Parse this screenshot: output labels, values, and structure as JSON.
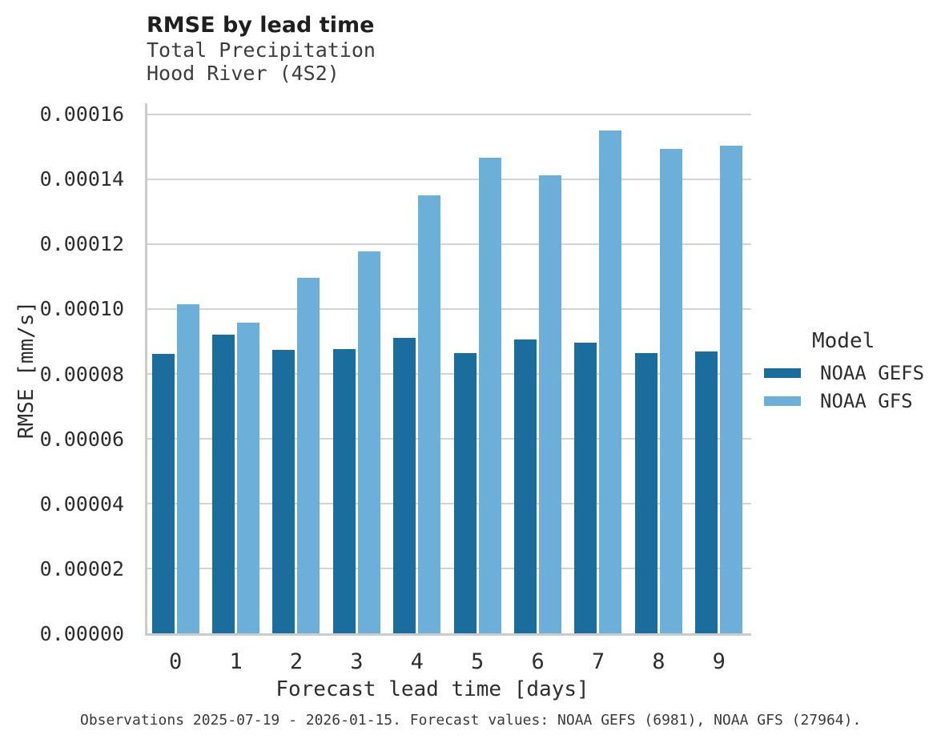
{
  "header": {
    "title": "RMSE by lead time",
    "subtitle_line1": "Total Precipitation",
    "subtitle_line2": "Hood River (4S2)"
  },
  "chart_data": {
    "type": "bar",
    "title": "RMSE by lead time",
    "subtitle": [
      "Total Precipitation",
      "Hood River (4S2)"
    ],
    "categories": [
      "0",
      "1",
      "2",
      "3",
      "4",
      "5",
      "6",
      "7",
      "8",
      "9"
    ],
    "series": [
      {
        "name": "NOAA GEFS",
        "color": "#1A6D9C",
        "values": [
          8.62e-05,
          9.21e-05,
          8.74e-05,
          8.76e-05,
          9.11e-05,
          8.64e-05,
          9.06e-05,
          8.96e-05,
          8.64e-05,
          8.69e-05
        ]
      },
      {
        "name": "NOAA GFS",
        "color": "#6CAFD8",
        "values": [
          0.0001014,
          9.57e-05,
          0.0001095,
          0.0001177,
          0.0001351,
          0.0001466,
          0.0001412,
          0.000155,
          0.0001493,
          0.0001503
        ]
      }
    ],
    "xlabel": "Forecast lead time [days]",
    "ylabel": "RMSE [mm/s]",
    "ylim": [
      0,
      0.00016
    ],
    "ytick_step": 2e-05,
    "ytick_decimals": 5,
    "grid": "horizontal",
    "legend_title": "Model",
    "legend_position": "right-center"
  },
  "caption": {
    "text": "Observations 2025-07-19 - 2026-01-15. Forecast values: NOAA GEFS (6981), NOAA GFS (27964)."
  }
}
